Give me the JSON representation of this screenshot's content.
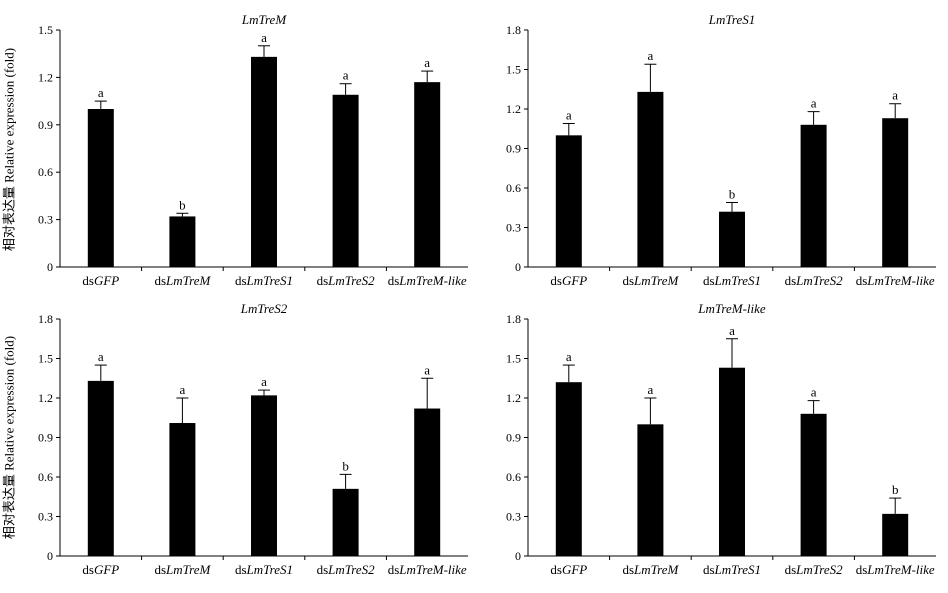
{
  "ylabel": "相对表达量 Relative expression (fold)",
  "chart_data": [
    {
      "type": "bar",
      "title": "LmTreM",
      "categories": [
        {
          "prefix": "ds",
          "italic": "GFP"
        },
        {
          "prefix": "ds",
          "italic": "LmTreM"
        },
        {
          "prefix": "ds",
          "italic": "LmTreS1"
        },
        {
          "prefix": "ds",
          "italic": "LmTreS2"
        },
        {
          "prefix": "ds",
          "italic": "LmTreM-like"
        }
      ],
      "values": [
        1.0,
        0.32,
        1.33,
        1.09,
        1.17
      ],
      "errors": [
        0.05,
        0.02,
        0.07,
        0.07,
        0.07
      ],
      "significance": [
        "a",
        "b",
        "a",
        "a",
        "a"
      ],
      "yticks": [
        "0",
        "0.3",
        "0.6",
        "0.9",
        "1.2",
        "1.5"
      ],
      "ylim": [
        0,
        1.5
      ]
    },
    {
      "type": "bar",
      "title": "LmTreS1",
      "categories": [
        {
          "prefix": "ds",
          "italic": "GFP"
        },
        {
          "prefix": "ds",
          "italic": "LmTreM"
        },
        {
          "prefix": "ds",
          "italic": "LmTreS1"
        },
        {
          "prefix": "ds",
          "italic": "LmTreS2"
        },
        {
          "prefix": "ds",
          "italic": "LmTreM-like"
        }
      ],
      "values": [
        1.0,
        1.33,
        0.42,
        1.08,
        1.13
      ],
      "errors": [
        0.09,
        0.21,
        0.07,
        0.1,
        0.11
      ],
      "significance": [
        "a",
        "a",
        "b",
        "a",
        "a"
      ],
      "yticks": [
        "0",
        "0.3",
        "0.6",
        "0.9",
        "1.2",
        "1.5",
        "1.8"
      ],
      "ylim": [
        0,
        1.8
      ]
    },
    {
      "type": "bar",
      "title": "LmTreS2",
      "categories": [
        {
          "prefix": "ds",
          "italic": "GFP"
        },
        {
          "prefix": "ds",
          "italic": "LmTreM"
        },
        {
          "prefix": "ds",
          "italic": "LmTreS1"
        },
        {
          "prefix": "ds",
          "italic": "LmTreS2"
        },
        {
          "prefix": "ds",
          "italic": "LmTreM-like"
        }
      ],
      "values": [
        1.33,
        1.01,
        1.22,
        0.51,
        1.12
      ],
      "errors": [
        0.12,
        0.19,
        0.04,
        0.11,
        0.23
      ],
      "significance": [
        "a",
        "a",
        "a",
        "b",
        "a"
      ],
      "yticks": [
        "0",
        "0.3",
        "0.6",
        "0.9",
        "1.2",
        "1.5",
        "1.8"
      ],
      "ylim": [
        0,
        1.8
      ]
    },
    {
      "type": "bar",
      "title": "LmTreM-like",
      "categories": [
        {
          "prefix": "ds",
          "italic": "GFP"
        },
        {
          "prefix": "ds",
          "italic": "LmTreM"
        },
        {
          "prefix": "ds",
          "italic": "LmTreS1"
        },
        {
          "prefix": "ds",
          "italic": "LmTreS2"
        },
        {
          "prefix": "ds",
          "italic": "LmTreM-like"
        }
      ],
      "values": [
        1.32,
        1.0,
        1.43,
        1.08,
        0.32
      ],
      "errors": [
        0.13,
        0.2,
        0.22,
        0.1,
        0.12
      ],
      "significance": [
        "a",
        "a",
        "a",
        "a",
        "b"
      ],
      "yticks": [
        "0",
        "0.3",
        "0.6",
        "0.9",
        "1.2",
        "1.5",
        "1.8"
      ],
      "ylim": [
        0,
        1.8
      ]
    }
  ]
}
